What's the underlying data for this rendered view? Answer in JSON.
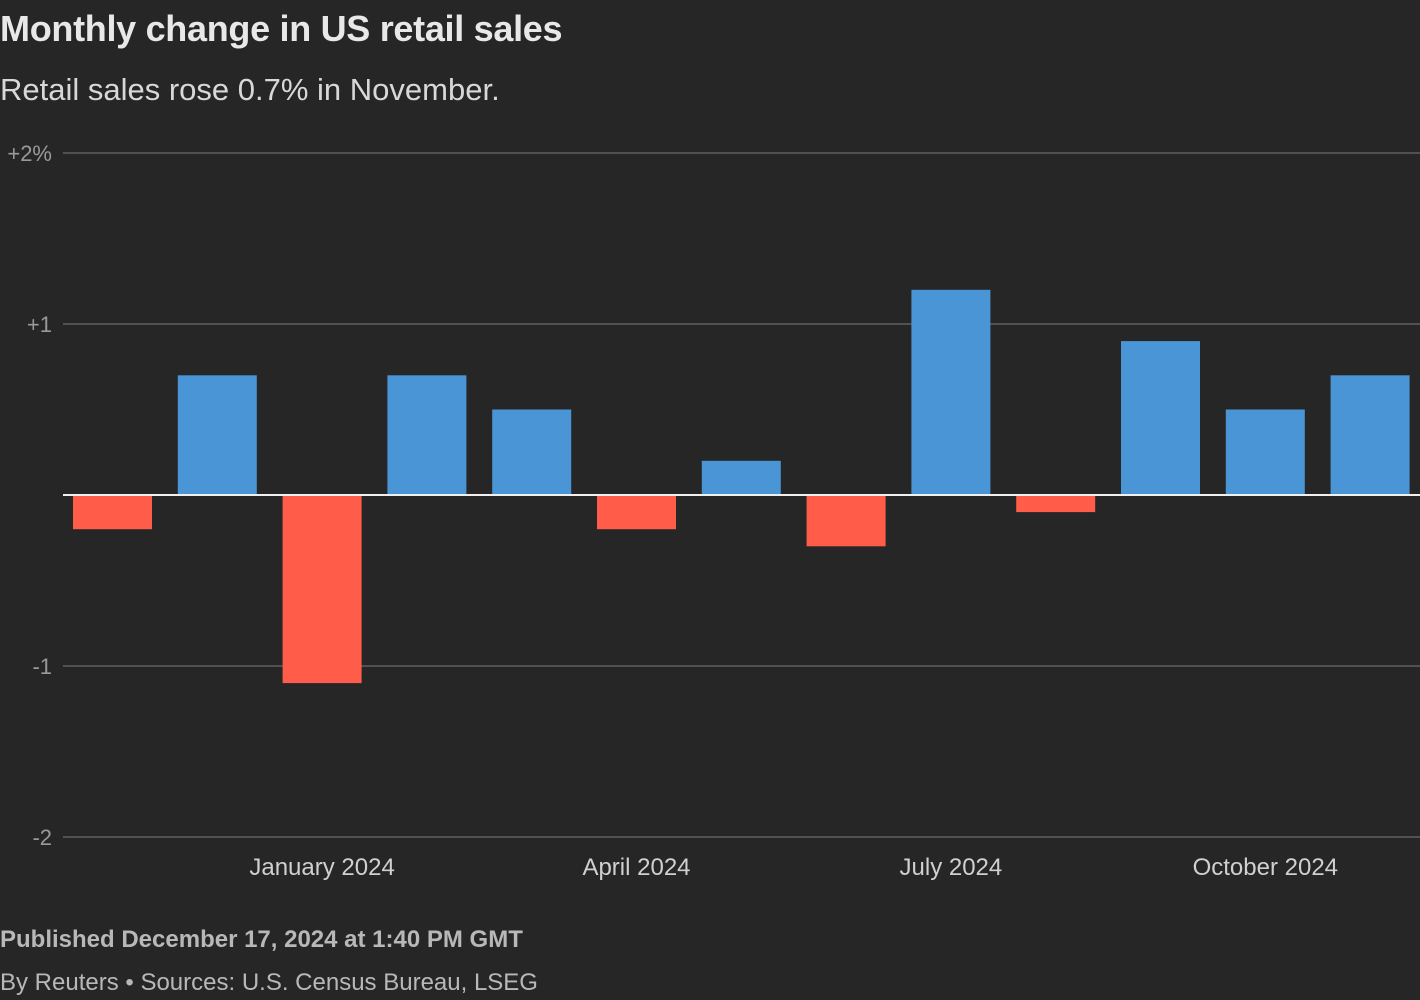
{
  "header": {
    "title": "Monthly change in US retail sales",
    "subtitle": "Retail sales rose 0.7% in November."
  },
  "footer": {
    "published": "Published December 17, 2024 at 1:40 PM GMT",
    "byline": "By Reuters • Sources: U.S. Census Bureau, LSEG"
  },
  "colors": {
    "positive": "#4a95d6",
    "negative": "#ff5c4a",
    "background": "#262626"
  },
  "chart_data": {
    "type": "bar",
    "title": "Monthly change in US retail sales",
    "subtitle": "Retail sales rose 0.7% in November.",
    "xlabel": "",
    "ylabel": "",
    "ylim": [
      -2,
      2
    ],
    "grid": true,
    "y_ticks": [
      {
        "value": 2,
        "label": "+2%"
      },
      {
        "value": 1,
        "label": "+1"
      },
      {
        "value": -1,
        "label": "-1"
      },
      {
        "value": -2,
        "label": "-2"
      }
    ],
    "x_ticks": [
      {
        "category": "Jan 2024",
        "label": "January 2024"
      },
      {
        "category": "Apr 2024",
        "label": "April 2024"
      },
      {
        "category": "Jul 2024",
        "label": "July 2024"
      },
      {
        "category": "Oct 2024",
        "label": "October 2024"
      }
    ],
    "categories": [
      "Nov 2023",
      "Dec 2023",
      "Jan 2024",
      "Feb 2024",
      "Mar 2024",
      "Apr 2024",
      "May 2024",
      "Jun 2024",
      "Jul 2024",
      "Aug 2024",
      "Sep 2024",
      "Oct 2024",
      "Nov 2024"
    ],
    "values": [
      -0.2,
      0.7,
      -1.1,
      0.7,
      0.5,
      -0.2,
      0.2,
      -0.3,
      1.2,
      -0.1,
      0.9,
      0.5,
      0.7
    ]
  }
}
